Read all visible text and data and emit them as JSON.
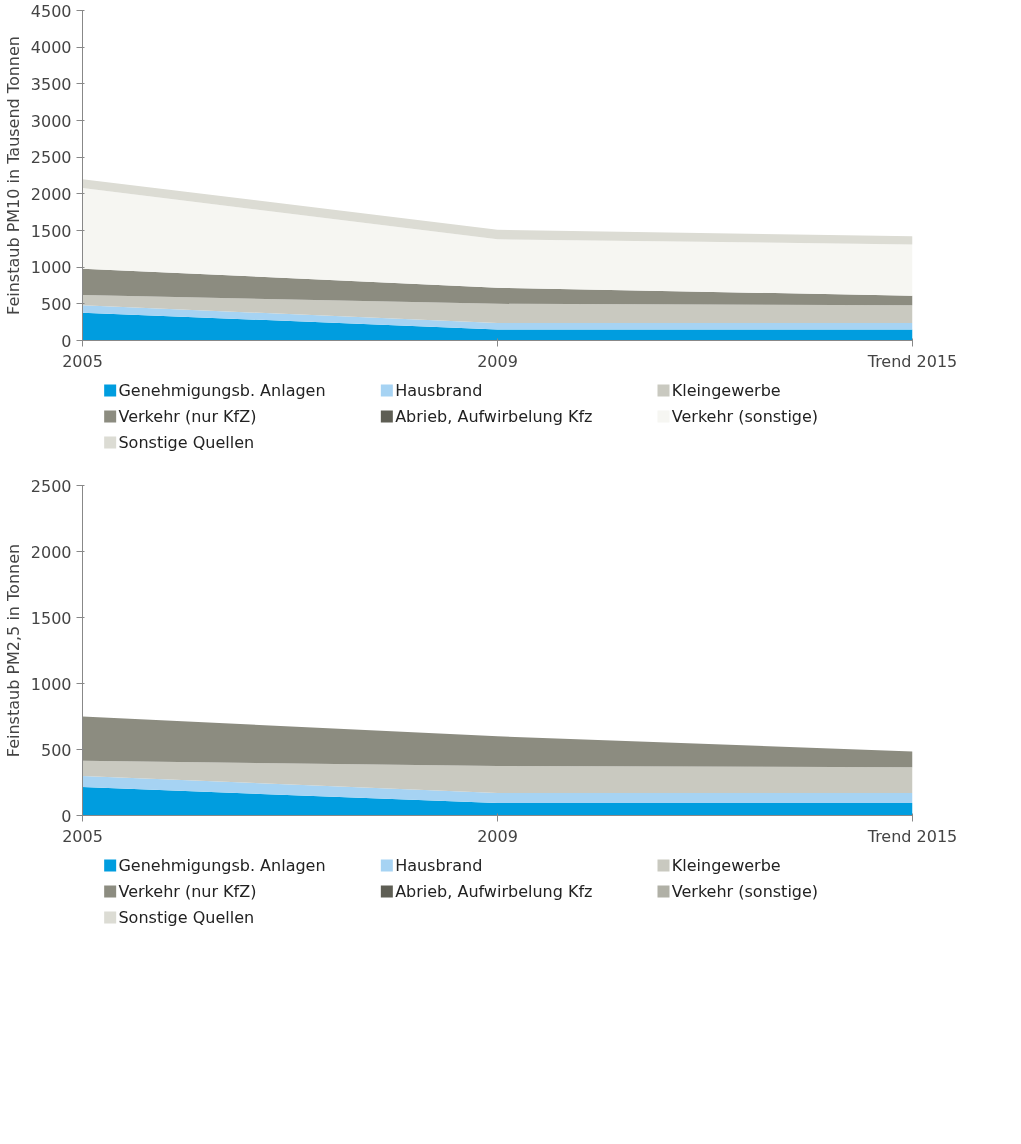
{
  "chart_data": [
    {
      "type": "area",
      "stacked": true,
      "ylabel": "Feinstaub PM10 in Tausend Tonnen",
      "categories": [
        "2005",
        "2009",
        "Trend 2015"
      ],
      "ylim": [
        0,
        4500
      ],
      "yticks": [
        0,
        500,
        1000,
        1500,
        2000,
        2500,
        3000,
        3500,
        4000,
        4500
      ],
      "grid": false,
      "legend": "bottom",
      "series": [
        {
          "name": "Genehmigungsb. Anlagen",
          "color": "#009ddf",
          "values": [
            380,
            150,
            150
          ]
        },
        {
          "name": "Hausbrand",
          "color": "#a6d3f3",
          "values": [
            100,
            90,
            90
          ]
        },
        {
          "name": "Kleingewerbe",
          "color": "#c9c9c0",
          "values": [
            140,
            260,
            240
          ]
        },
        {
          "name": "Verkehr (nur KfZ)",
          "color": "#8c8c80",
          "values": [
            360,
            220,
            130
          ]
        },
        {
          "name": "Abrieb, Aufwirbelung Kfz",
          "color": "#5e5e54",
          "values": [
            null,
            null,
            null
          ]
        },
        {
          "name": "Verkehr (sonstige)",
          "color": "#f6f6f2",
          "values": [
            1100,
            660,
            700
          ]
        },
        {
          "name": "Sonstige Quellen",
          "color": "#dcdcd4",
          "values": [
            120,
            130,
            110
          ]
        }
      ]
    },
    {
      "type": "area",
      "stacked": true,
      "ylabel": "Feinstaub PM2,5 in Tonnen",
      "categories": [
        "2005",
        "2009",
        "Trend 2015"
      ],
      "ylim": [
        0,
        2500
      ],
      "yticks": [
        0,
        500,
        1000,
        1500,
        2000,
        2500
      ],
      "grid": false,
      "legend": "bottom",
      "series": [
        {
          "name": "Genehmigungsb. Anlagen",
          "color": "#009ddf",
          "values": [
            215,
            95,
            95
          ]
        },
        {
          "name": "Hausbrand",
          "color": "#a6d3f3",
          "values": [
            85,
            75,
            75
          ]
        },
        {
          "name": "Kleingewerbe",
          "color": "#c9c9c0",
          "values": [
            115,
            205,
            195
          ]
        },
        {
          "name": "Verkehr (nur KfZ)",
          "color": "#8c8c80",
          "values": [
            335,
            225,
            120
          ]
        },
        {
          "name": "Abrieb, Aufwirbelung Kfz",
          "color": "#5e5e54",
          "values": [
            null,
            null,
            null
          ]
        },
        {
          "name": "Verkehr (sonstige)",
          "color": "#b0b0a6",
          "values": [
            null,
            null,
            null
          ]
        },
        {
          "name": "Sonstige Quellen",
          "color": "#dcdcd4",
          "values": [
            null,
            null,
            null
          ]
        }
      ]
    }
  ]
}
